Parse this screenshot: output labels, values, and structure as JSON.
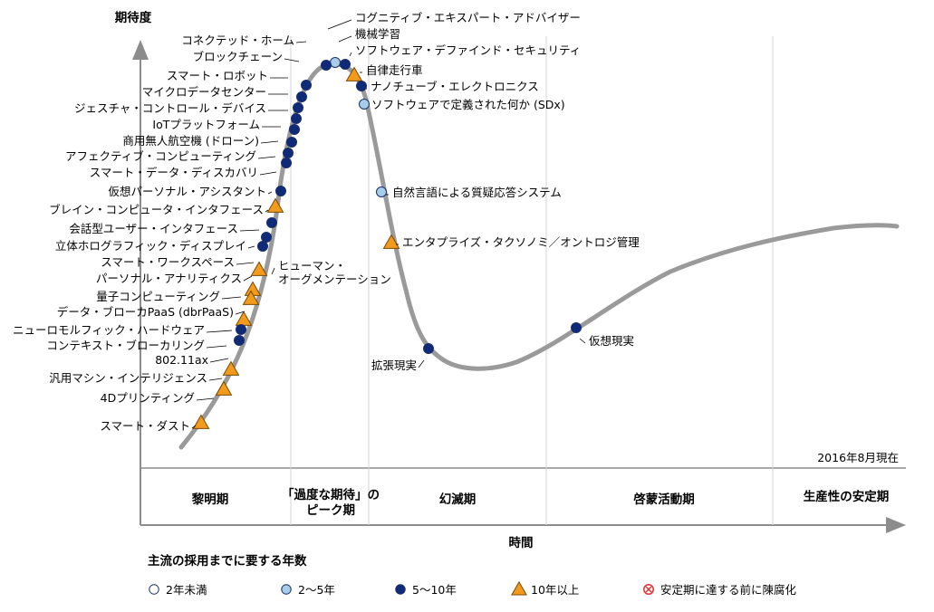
{
  "chart_data": {
    "type": "scatter",
    "title": "",
    "ylabel": "期待度",
    "xlabel": "時間",
    "as_of": "2016年8月現在",
    "phases": [
      "黎明期",
      "「過度な期待」の",
      "ピーク期",
      "幻滅期",
      "啓蒙活動期",
      "生産性の安定期"
    ],
    "legend": {
      "title": "主流の採用までに要する年数",
      "items": [
        {
          "label": "2年未満",
          "marker": "circle-white"
        },
        {
          "label": "2～5年",
          "marker": "circle-lightblue"
        },
        {
          "label": "5～10年",
          "marker": "circle-navy"
        },
        {
          "label": "10年以上",
          "marker": "triangle-orange"
        },
        {
          "label": "安定期に達する前に陳腐化",
          "marker": "x-circle-red"
        }
      ]
    },
    "points": [
      {
        "label": "コグニティブ・エキスパート・アドバイザー",
        "marker": "circle-lightblue"
      },
      {
        "label": "機械学習",
        "marker": "circle-lightblue"
      },
      {
        "label": "ソフトウェア・デファインド・セキュリティ",
        "marker": "circle-navy"
      },
      {
        "label": "自律走行車",
        "marker": "triangle-orange"
      },
      {
        "label": "ナノチューブ・エレクトロニクス",
        "marker": "circle-navy"
      },
      {
        "label": "ソフトウェアで定義された何か (SDx)",
        "marker": "circle-lightblue"
      },
      {
        "label": "自然言語による質疑応答システム",
        "marker": "circle-lightblue"
      },
      {
        "label": "エンタプライズ・タクソノミ／オントロジ管理",
        "marker": "triangle-orange"
      },
      {
        "label": "拡張現実",
        "marker": "circle-navy"
      },
      {
        "label": "仮想現実",
        "marker": "circle-navy"
      },
      {
        "label": "コネクテッド・ホーム",
        "marker": "circle-navy"
      },
      {
        "label": "ブロックチェーン",
        "marker": "circle-navy"
      },
      {
        "label": "スマート・ロボット",
        "marker": "circle-navy"
      },
      {
        "label": "マイクロデータセンター",
        "marker": "circle-navy"
      },
      {
        "label": "ジェスチャ・コントロール・デバイス",
        "marker": "circle-navy"
      },
      {
        "label": "IoTプラットフォーム",
        "marker": "circle-navy"
      },
      {
        "label": "商用無人航空機 (ドローン)",
        "marker": "circle-navy"
      },
      {
        "label": "アフェクティブ・コンピューティング",
        "marker": "circle-navy"
      },
      {
        "label": "スマート・データ・ディスカバリ",
        "marker": "circle-navy"
      },
      {
        "label": "仮想パーソナル・アシスタント",
        "marker": "circle-navy"
      },
      {
        "label": "ブレイン・コンピュータ・インタフェース",
        "marker": "triangle-orange"
      },
      {
        "label": "会話型ユーザー・インタフェース",
        "marker": "circle-navy"
      },
      {
        "label": "立体ホログラフィック・ディスプレイ",
        "marker": "circle-navy"
      },
      {
        "label": "スマート・ワークスペース",
        "marker": "circle-navy"
      },
      {
        "label": "パーソナル・アナリティクス",
        "marker": "triangle-orange"
      },
      {
        "label": "ヒューマン・",
        "label2": "オーグメンテーション",
        "marker": "triangle-orange"
      },
      {
        "label": "量子コンピューティング",
        "marker": "triangle-orange"
      },
      {
        "label": "データ・ブローカPaaS (dbrPaaS)",
        "marker": "triangle-orange"
      },
      {
        "label": "ニューロモルフィック・ハードウェア",
        "marker": "triangle-orange"
      },
      {
        "label": "コンテキスト・ブローカリング",
        "marker": "circle-navy"
      },
      {
        "label": "802.11ax",
        "marker": "circle-navy"
      },
      {
        "label": "汎用マシン・インテリジェンス",
        "marker": "triangle-orange"
      },
      {
        "label": "4Dプリンティング",
        "marker": "triangle-orange"
      },
      {
        "label": "スマート・ダスト",
        "marker": "triangle-orange"
      }
    ],
    "colors": {
      "curve": "#9a9a9a",
      "navy": "#0f2a78",
      "lightblue": "#a8cdea",
      "orange": "#f29a1d",
      "axis": "#8c8c8c",
      "red": "#e03030"
    }
  }
}
